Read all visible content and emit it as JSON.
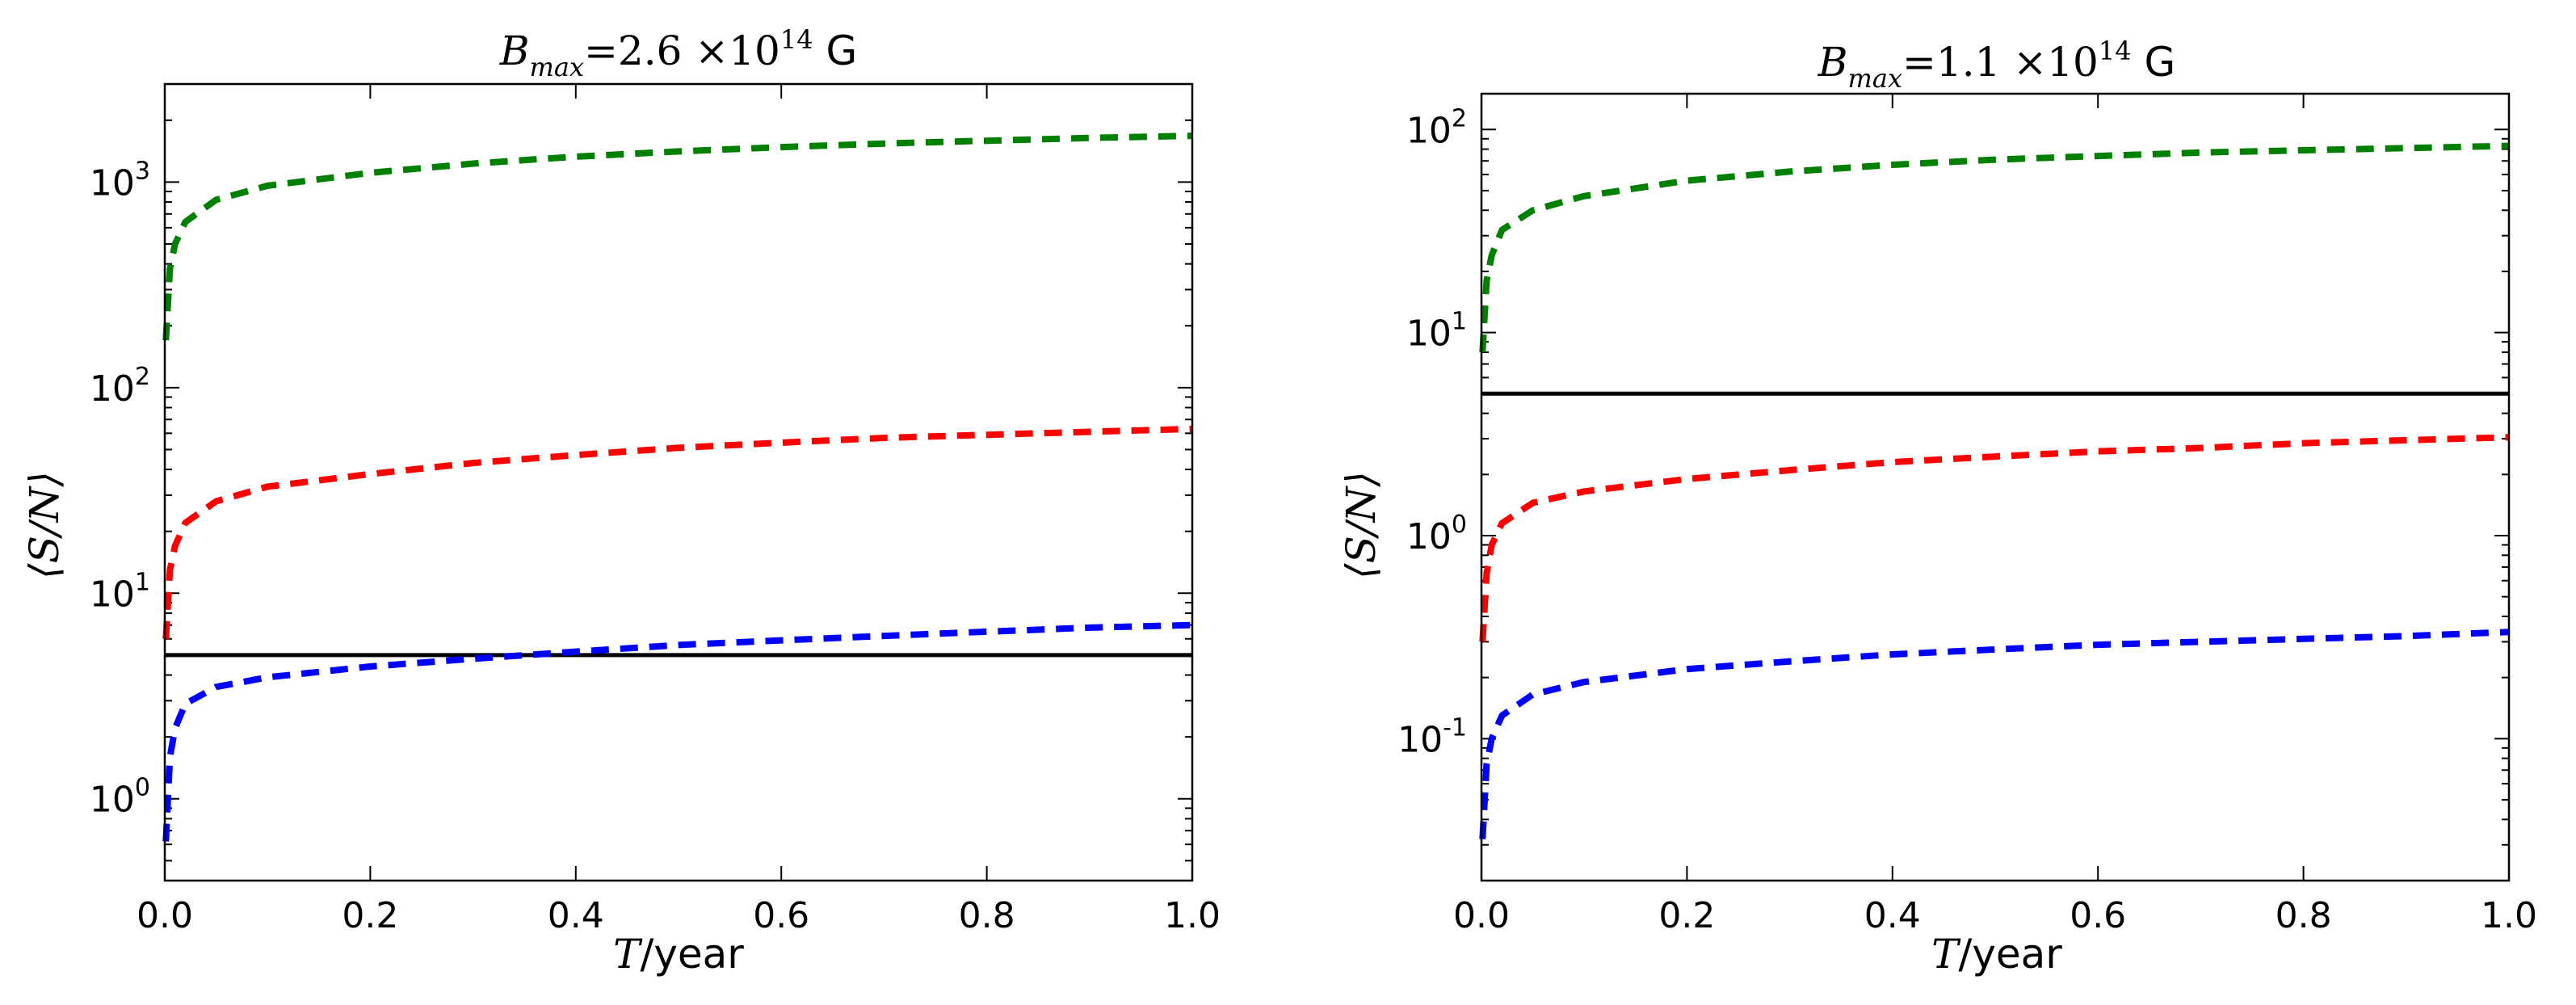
{
  "chart_data": [
    {
      "type": "line",
      "title": "B_max=2.6 ×10^14 G",
      "title_parts": {
        "var": "B",
        "sub": "max",
        "eq": "=2.6 ×10",
        "exp": "14",
        "unit": "G"
      },
      "xlabel": {
        "var": "T",
        "unit": "/year"
      },
      "ylabel": "⟨S/N⟩",
      "xlim": [
        0.0,
        1.0
      ],
      "ylim": [
        0.4,
        3000
      ],
      "yscale": "log",
      "xticks": [
        "0.0",
        "0.2",
        "0.4",
        "0.6",
        "0.8",
        "1.0"
      ],
      "ytick_exponents": [
        "0",
        "1",
        "2",
        "3"
      ],
      "threshold": 5,
      "series": [
        {
          "name": "green",
          "color": "#008000",
          "style": "dashed",
          "x": [
            0.001,
            0.005,
            0.01,
            0.02,
            0.05,
            0.1,
            0.2,
            0.3,
            0.4,
            0.5,
            0.6,
            0.7,
            0.8,
            0.9,
            1.0
          ],
          "values": [
            170,
            380,
            500,
            640,
            820,
            960,
            1110,
            1230,
            1330,
            1410,
            1480,
            1540,
            1590,
            1640,
            1680
          ]
        },
        {
          "name": "red",
          "color": "#ff0000",
          "style": "dashed",
          "x": [
            0.001,
            0.005,
            0.01,
            0.02,
            0.05,
            0.1,
            0.2,
            0.3,
            0.4,
            0.5,
            0.6,
            0.7,
            0.8,
            0.9,
            1.0
          ],
          "values": [
            6,
            13,
            17,
            22,
            28,
            33,
            38,
            43,
            47,
            51,
            54,
            57,
            59,
            61,
            63
          ]
        },
        {
          "name": "blue",
          "color": "#0000ff",
          "style": "dashed",
          "x": [
            0.001,
            0.005,
            0.01,
            0.02,
            0.05,
            0.1,
            0.2,
            0.3,
            0.4,
            0.5,
            0.6,
            0.7,
            0.8,
            0.9,
            1.0
          ],
          "values": [
            0.62,
            1.6,
            2.2,
            2.9,
            3.5,
            3.9,
            4.4,
            4.8,
            5.2,
            5.6,
            5.9,
            6.2,
            6.5,
            6.8,
            7.0
          ]
        }
      ]
    },
    {
      "type": "line",
      "title": "B_max=1.1 ×10^14 G",
      "title_parts": {
        "var": "B",
        "sub": "max",
        "eq": "=1.1 ×10",
        "exp": "14",
        "unit": "G"
      },
      "xlabel": {
        "var": "T",
        "unit": "/year"
      },
      "ylabel": "⟨S/N⟩",
      "xlim": [
        0.0,
        1.0
      ],
      "ylim": [
        0.02,
        150
      ],
      "yscale": "log",
      "xticks": [
        "0.0",
        "0.2",
        "0.4",
        "0.6",
        "0.8",
        "1.0"
      ],
      "ytick_exponents": [
        "-1",
        "0",
        "1",
        "2"
      ],
      "threshold": 5,
      "series": [
        {
          "name": "green",
          "color": "#008000",
          "style": "dashed",
          "x": [
            0.001,
            0.005,
            0.01,
            0.02,
            0.05,
            0.1,
            0.2,
            0.3,
            0.4,
            0.5,
            0.6,
            0.7,
            0.8,
            0.9,
            1.0
          ],
          "values": [
            8,
            18,
            24,
            32,
            40,
            47,
            56,
            62,
            67,
            71,
            74,
            77,
            79,
            81,
            83
          ]
        },
        {
          "name": "red",
          "color": "#ff0000",
          "style": "dashed",
          "x": [
            0.001,
            0.005,
            0.01,
            0.02,
            0.05,
            0.1,
            0.2,
            0.3,
            0.4,
            0.5,
            0.6,
            0.7,
            0.8,
            0.9,
            1.0
          ],
          "values": [
            0.3,
            0.65,
            0.9,
            1.15,
            1.45,
            1.65,
            1.9,
            2.1,
            2.3,
            2.45,
            2.6,
            2.7,
            2.85,
            2.95,
            3.05
          ]
        },
        {
          "name": "blue",
          "color": "#0000ff",
          "style": "dashed",
          "x": [
            0.001,
            0.005,
            0.01,
            0.02,
            0.05,
            0.1,
            0.2,
            0.3,
            0.4,
            0.5,
            0.6,
            0.7,
            0.8,
            0.9,
            1.0
          ],
          "values": [
            0.032,
            0.075,
            0.1,
            0.13,
            0.165,
            0.19,
            0.22,
            0.24,
            0.26,
            0.275,
            0.29,
            0.3,
            0.31,
            0.32,
            0.335
          ]
        }
      ]
    }
  ]
}
